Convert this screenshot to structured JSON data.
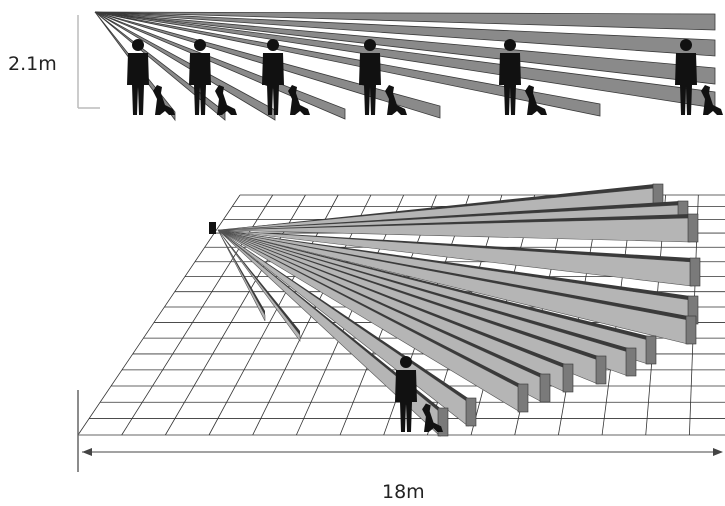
{
  "labels": {
    "height": "2.1m",
    "range": "18m"
  }
}
